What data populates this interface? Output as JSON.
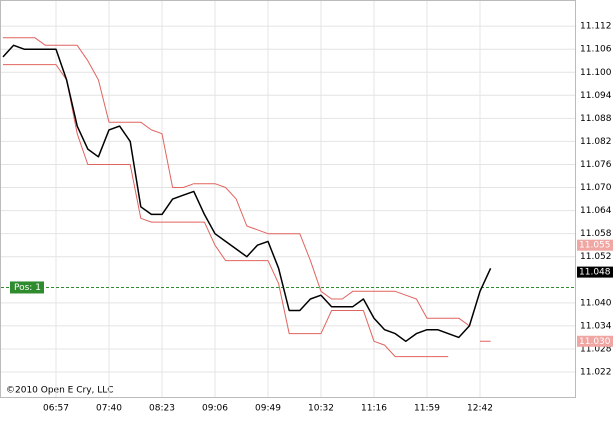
{
  "chart_data": {
    "type": "line",
    "footer": "©2010 Open E Cry, LLC",
    "categories": [
      null,
      null,
      null,
      null,
      null,
      "06:57",
      null,
      null,
      null,
      null,
      "07:40",
      null,
      null,
      null,
      null,
      "08:23",
      null,
      null,
      null,
      null,
      "09:06",
      null,
      null,
      null,
      null,
      "09:49",
      null,
      null,
      null,
      null,
      "10:32",
      null,
      null,
      null,
      null,
      "11:16",
      null,
      null,
      null,
      null,
      "11:59",
      null,
      null,
      null,
      null,
      "12:42",
      null
    ],
    "series": [
      {
        "color": "#e0645e",
        "values": [
          11.109,
          11.109,
          11.109,
          11.109,
          11.107,
          11.107,
          11.107,
          11.107,
          11.103,
          11.098,
          11.087,
          11.087,
          11.087,
          11.087,
          11.085,
          11.084,
          11.07,
          11.07,
          11.071,
          11.071,
          11.071,
          11.07,
          11.067,
          11.06,
          11.059,
          11.058,
          11.058,
          11.058,
          11.058,
          11.051,
          11.043,
          11.041,
          11.041,
          11.043,
          11.043,
          11.043,
          11.043,
          11.043,
          11.042,
          11.041,
          11.036,
          11.036,
          11.036,
          11.036,
          11.034,
          null,
          null
        ]
      },
      {
        "color": "#e0645e",
        "values": [
          11.102,
          11.102,
          11.102,
          11.102,
          11.102,
          11.102,
          11.098,
          11.084,
          11.076,
          11.076,
          11.076,
          11.076,
          11.076,
          11.062,
          11.061,
          11.061,
          11.061,
          11.061,
          11.061,
          11.061,
          11.055,
          11.051,
          11.051,
          11.051,
          11.051,
          11.051,
          11.045,
          11.032,
          11.032,
          11.032,
          11.032,
          11.038,
          11.038,
          11.038,
          11.038,
          11.03,
          11.029,
          11.026,
          11.026,
          11.026,
          11.026,
          11.026,
          11.026,
          null,
          null,
          11.03,
          11.03
        ]
      },
      {
        "color": "#000000",
        "values": [
          11.104,
          11.107,
          11.106,
          11.106,
          11.106,
          11.106,
          11.098,
          11.086,
          11.08,
          11.078,
          11.085,
          11.086,
          11.082,
          11.065,
          11.063,
          11.063,
          11.067,
          11.068,
          11.069,
          11.063,
          11.058,
          11.056,
          11.054,
          11.052,
          11.055,
          11.056,
          11.049,
          11.038,
          11.038,
          11.041,
          11.042,
          11.039,
          11.039,
          11.039,
          11.041,
          11.036,
          11.033,
          11.032,
          11.03,
          11.032,
          11.033,
          11.033,
          11.032,
          11.031,
          11.034,
          11.043,
          11.049
        ]
      }
    ],
    "ylim": [
      11.0155,
      11.1188
    ],
    "yticks": [
      11.112,
      11.106,
      {
        "value": 11.1,
        "label": "11.100"
      },
      11.094,
      11.088,
      11.082,
      11.076,
      {
        "value": 11.07,
        "label": "11.070"
      },
      11.064,
      11.058,
      11.052,
      {
        "value": 11.04,
        "label": "11.040"
      },
      11.034,
      11.028,
      11.022
    ],
    "grid": true,
    "markers": [
      {
        "value": 11.055,
        "label": "11.055",
        "color": "#f0a6a2"
      },
      {
        "value": 11.048,
        "label": "11.048",
        "color": "#000000"
      },
      {
        "value": 11.03,
        "label": "11.030",
        "color": "#f0a6a2"
      }
    ],
    "position": {
      "value": 11.044,
      "label": "Pos: 1",
      "color": "#2e8b2e"
    }
  }
}
